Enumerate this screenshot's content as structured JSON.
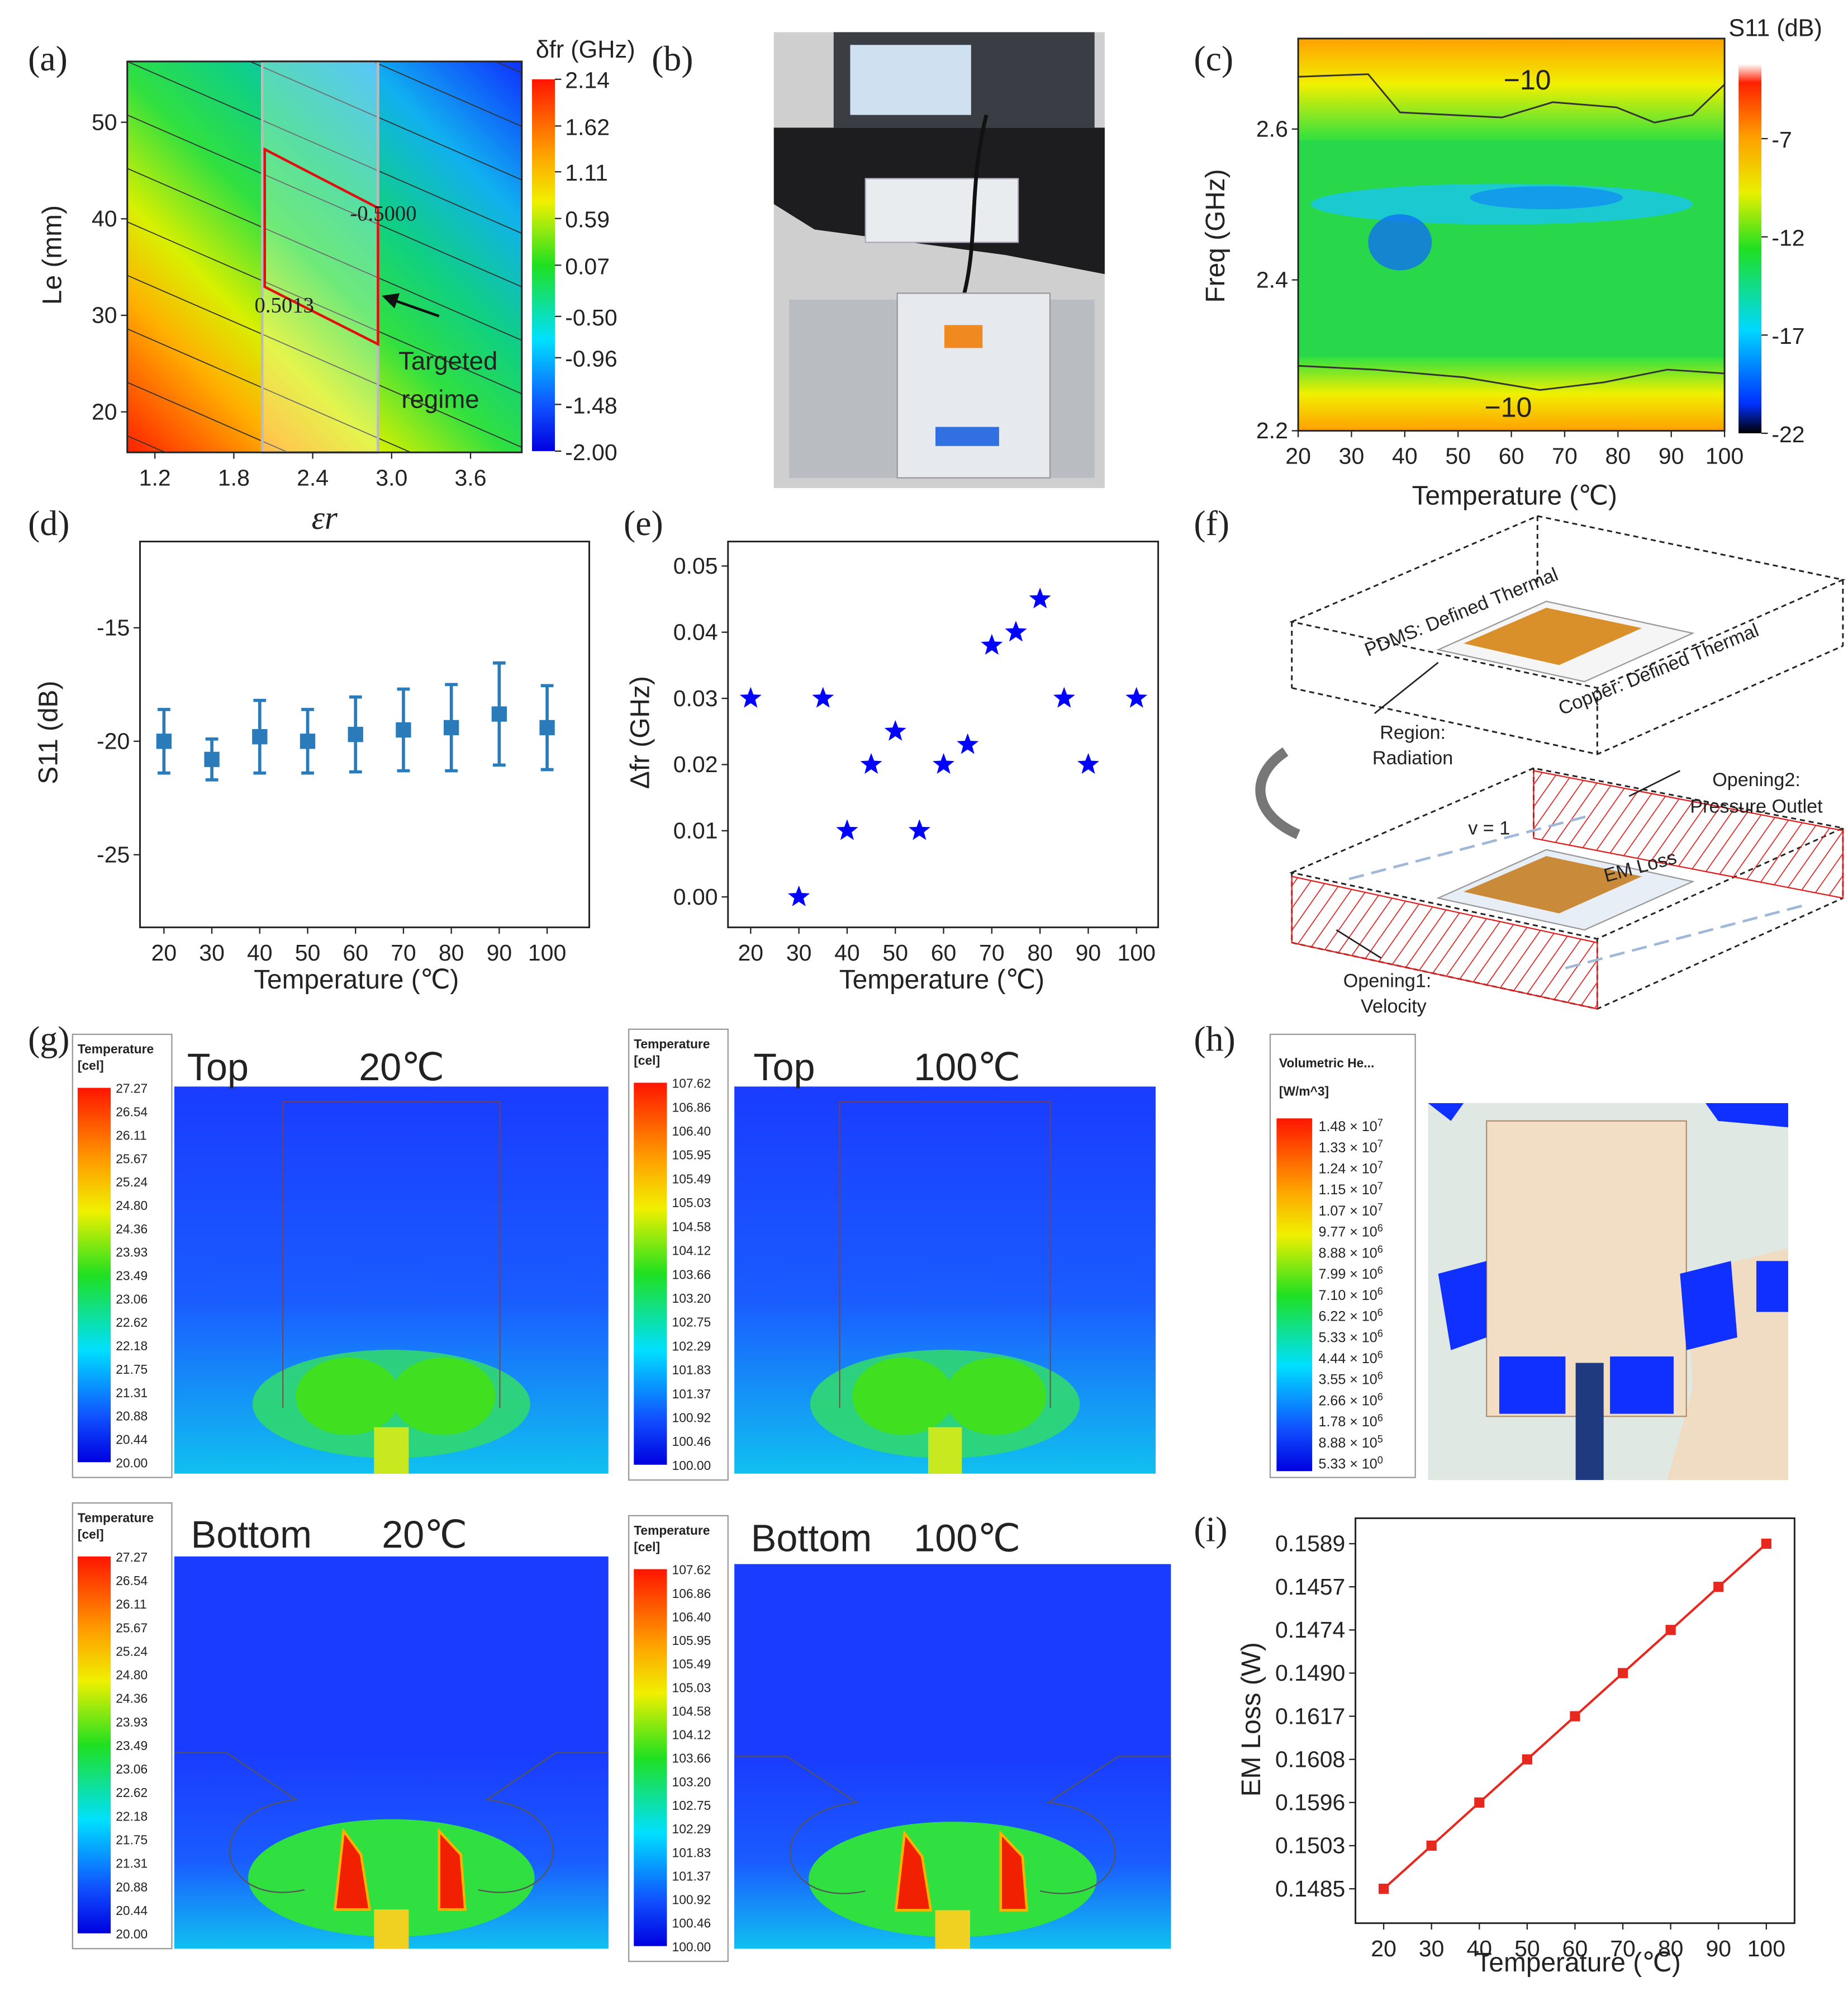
{
  "chart_data": [
    {
      "type": "heatmap",
      "panel": "(a)",
      "xlabel": "εr",
      "ylabel": "Le (mm)",
      "xlim": [
        0.99,
        3.99
      ],
      "xticks": [
        1.2,
        1.8,
        2.4,
        {
          "value": 3,
          "label": "3.0"
        },
        3.6
      ],
      "ylim": [
        15.8,
        56.3
      ],
      "yticks": [
        20,
        30,
        40,
        50
      ],
      "colorbar_title": "δfr (GHz)",
      "clim": [
        -2,
        2.14
      ],
      "cticks": [
        2.14,
        1.62,
        1.11,
        0.59,
        0.07,
        {
          "value": -0.5,
          "label": "-0.50"
        },
        -0.96,
        -1.48,
        {
          "value": -2,
          "label": "-2.00"
        }
      ],
      "annotations": [
        "-0.5000",
        "0.5013"
      ],
      "arrow_label": [
        "Targeted",
        "regime"
      ]
    },
    {
      "type": "heatmap",
      "panel": "(c)",
      "xlabel": "Temperature (℃)",
      "ylabel": "Freq (GHz)",
      "xlim": [
        20,
        100
      ],
      "xticks": [
        20,
        30,
        40,
        50,
        60,
        70,
        80,
        90,
        100
      ],
      "ylim": [
        2.2,
        2.72
      ],
      "yticks": [
        2.2,
        2.4,
        2.6
      ],
      "colorbar_title": "S11 (dB)",
      "clim": [
        -22,
        -3.2
      ],
      "cticks": [
        -7,
        -12,
        -17,
        -22
      ],
      "contour_labels": [
        "−10",
        "−10"
      ]
    },
    {
      "type": "errorbar",
      "panel": "(d)",
      "xlabel": "Temperature (℃)",
      "ylabel": "S11 (dB)",
      "x": [
        20,
        30,
        40,
        50,
        60,
        70,
        80,
        90,
        100
      ],
      "values": [
        -20,
        -20.8,
        -19.8,
        -20,
        -19.7,
        -19.5,
        -19.4,
        -18.8,
        -19.4
      ],
      "errors": [
        1.4,
        0.9,
        1.6,
        1.4,
        1.65,
        1.8,
        1.9,
        2.25,
        1.85
      ],
      "color": "#2b7bba",
      "xlim": [
        15,
        108.8
      ],
      "xticks": [
        20,
        30,
        40,
        50,
        60,
        70,
        80,
        90,
        100
      ],
      "ylim": [
        -28.2,
        -11.2
      ],
      "yticks": [
        -15,
        -20,
        -25
      ]
    },
    {
      "type": "scatter",
      "panel": "(e)",
      "xlabel": "Temperature (℃)",
      "ylabel": "Δfr (GHz)",
      "x": [
        20,
        30,
        35,
        40,
        45,
        50,
        55,
        60,
        65,
        70,
        75,
        80,
        85,
        90,
        100
      ],
      "values": [
        0.03,
        0,
        0.03,
        0.01,
        0.02,
        0.025,
        0.01,
        0.02,
        0.023,
        0.038,
        0.04,
        0.045,
        0.03,
        0.02,
        0.03
      ],
      "color": "#0000ff",
      "xlim": [
        15.3,
        104.5
      ],
      "xticks": [
        20,
        30,
        40,
        50,
        60,
        70,
        80,
        90,
        100
      ],
      "ylim": [
        -0.0046,
        0.0537
      ],
      "yticks": [
        {
          "value": 0,
          "label": "0.00"
        },
        0.01,
        0.02,
        0.03,
        0.04,
        0.05
      ]
    },
    {
      "type": "line",
      "panel": "(i)",
      "xlabel": "Temperature (℃)",
      "ylabel": "EM Loss (W)",
      "x": [
        20,
        30,
        40,
        50,
        60,
        70,
        80,
        90,
        100
      ],
      "values": [
        0.1485,
        0.1503,
        0.1596,
        0.1608,
        0.1617,
        0.149,
        0.1474,
        0.1457,
        0.1589
      ],
      "color": "#e8271e",
      "xlim": [
        14.1,
        105.9
      ],
      "xticks": [
        20,
        30,
        40,
        50,
        60,
        70,
        80,
        90,
        100
      ],
      "yscale": "categorical",
      "yticks": [
        0.1485,
        0.1503,
        0.1596,
        0.1608,
        0.1617,
        {
          "value": 0.149,
          "label": "0.1490"
        },
        0.1474,
        0.1457,
        0.1589
      ]
    }
  ],
  "photo_b": {
    "panel": "(b)"
  },
  "diagram_f": {
    "panel": "(f)",
    "labels": [
      "PDMS: Defined Thermal",
      "Copper: Defined Thermal",
      "Region:",
      "Radiation",
      "Opening2:",
      "Pressure Outlet",
      "v = 1",
      "EM Loss",
      "Opening1:",
      "Velocity"
    ]
  },
  "simulations_g": {
    "panel": "(g)",
    "views": [
      {
        "title": "Top",
        "temperature": "20℃",
        "legend_title": "Temperature",
        "legend_unit": "[cel]",
        "legend_ticks": [
          "27.27",
          "26.54",
          "26.11",
          "25.67",
          "25.24",
          "24.80",
          "24.36",
          "23.93",
          "23.49",
          "23.06",
          "22.62",
          "22.18",
          "21.75",
          "21.31",
          "20.88",
          "20.44",
          "20.00"
        ]
      },
      {
        "title": "Top",
        "temperature": "100℃",
        "legend_title": "Temperature",
        "legend_unit": "[cel]",
        "legend_ticks": [
          "107.62",
          "106.86",
          "106.40",
          "105.95",
          "105.49",
          "105.03",
          "104.58",
          "104.12",
          "103.66",
          "103.20",
          "102.75",
          "102.29",
          "101.83",
          "101.37",
          "100.92",
          "100.46",
          "100.00"
        ]
      },
      {
        "title": "Bottom",
        "temperature": "20℃",
        "legend_title": "Temperature",
        "legend_unit": "[cel]",
        "legend_ticks": [
          "27.27",
          "26.54",
          "26.11",
          "25.67",
          "25.24",
          "24.80",
          "24.36",
          "23.93",
          "23.49",
          "23.06",
          "22.62",
          "22.18",
          "21.75",
          "21.31",
          "20.88",
          "20.44",
          "20.00"
        ]
      },
      {
        "title": "Bottom",
        "temperature": "100℃",
        "legend_title": "Temperature",
        "legend_unit": "[cel]",
        "legend_ticks": [
          "107.62",
          "106.86",
          "106.40",
          "105.95",
          "105.49",
          "105.03",
          "104.58",
          "104.12",
          "103.66",
          "103.20",
          "102.75",
          "102.29",
          "101.83",
          "101.37",
          "100.92",
          "100.46",
          "100.00"
        ]
      }
    ]
  },
  "simulation_h": {
    "panel": "(h)",
    "legend_title": "Volumetric He...",
    "legend_unit": "[W/m^3]",
    "legend_ticks": [
      {
        "mantissa": "1.48 × 10",
        "exponent": "7"
      },
      {
        "mantissa": "1.33 × 10",
        "exponent": "7"
      },
      {
        "mantissa": "1.24 × 10",
        "exponent": "7"
      },
      {
        "mantissa": "1.15 × 10",
        "exponent": "7"
      },
      {
        "mantissa": "1.07 × 10",
        "exponent": "7"
      },
      {
        "mantissa": "9.77 × 10",
        "exponent": "6"
      },
      {
        "mantissa": "8.88 × 10",
        "exponent": "6"
      },
      {
        "mantissa": "7.99 × 10",
        "exponent": "6"
      },
      {
        "mantissa": "7.10 × 10",
        "exponent": "6"
      },
      {
        "mantissa": "6.22 × 10",
        "exponent": "6"
      },
      {
        "mantissa": "5.33 × 10",
        "exponent": "6"
      },
      {
        "mantissa": "4.44 × 10",
        "exponent": "6"
      },
      {
        "mantissa": "3.55 × 10",
        "exponent": "6"
      },
      {
        "mantissa": "2.66 × 10",
        "exponent": "6"
      },
      {
        "mantissa": "1.78 × 10",
        "exponent": "6"
      },
      {
        "mantissa": "8.88 × 10",
        "exponent": "5"
      },
      {
        "mantissa": "5.33 × 10",
        "exponent": "0"
      }
    ]
  }
}
